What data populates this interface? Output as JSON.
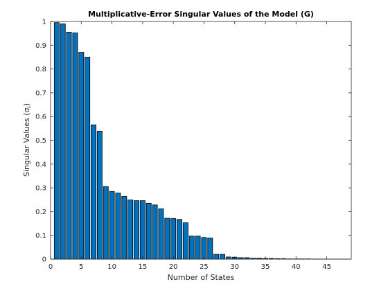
{
  "chart_data": {
    "type": "bar",
    "title": "Multiplicative-Error Singular Values of the Model (G)",
    "xlabel": "Number of States",
    "ylabel": "Singular Values (σ",
    "ylabel_subscript": "i",
    "ylabel_close": ")",
    "xlim": [
      0,
      49
    ],
    "ylim": [
      0,
      1
    ],
    "x_ticks": [
      0,
      5,
      10,
      15,
      20,
      25,
      30,
      35,
      40,
      45
    ],
    "y_ticks": [
      0,
      0.1,
      0.2,
      0.3,
      0.4,
      0.5,
      0.6,
      0.7,
      0.8,
      0.9,
      1
    ],
    "bar_color": "#0072BD",
    "edge_color": "#000000",
    "grid": false,
    "x": [
      1,
      2,
      3,
      4,
      5,
      6,
      7,
      8,
      9,
      10,
      11,
      12,
      13,
      14,
      15,
      16,
      17,
      18,
      19,
      20,
      21,
      22,
      23,
      24,
      25,
      26,
      27,
      28,
      29,
      30,
      31,
      32,
      33,
      34,
      35,
      36,
      37,
      38,
      39,
      40,
      41,
      42,
      43,
      44,
      45,
      46,
      47,
      48
    ],
    "values": [
      0.995,
      0.99,
      0.955,
      0.952,
      0.87,
      0.85,
      0.565,
      0.538,
      0.305,
      0.285,
      0.278,
      0.264,
      0.249,
      0.246,
      0.246,
      0.235,
      0.228,
      0.212,
      0.172,
      0.171,
      0.167,
      0.153,
      0.097,
      0.097,
      0.091,
      0.089,
      0.02,
      0.02,
      0.009,
      0.008,
      0.006,
      0.006,
      0.004,
      0.004,
      0.003,
      0.003,
      0.002,
      0.002,
      0.001,
      0.001,
      0.001,
      0.001,
      0.0005,
      0.0005,
      0.0003,
      0.0003,
      0.0002,
      0.0002
    ]
  }
}
